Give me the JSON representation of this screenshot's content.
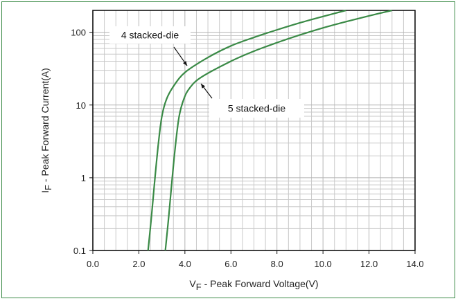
{
  "chart_data": {
    "type": "line",
    "xlabel": "V_F - Peak Forward Voltage(V)",
    "ylabel": "I_F - Peak Forward Current(A)",
    "xlim": [
      0,
      14
    ],
    "ylim": [
      0.1,
      200
    ],
    "y_scale": "log",
    "grid": true,
    "x_ticks": [
      "0.0",
      "2.0",
      "4.0",
      "6.0",
      "8.0",
      "10.0",
      "12.0",
      "14.0"
    ],
    "y_ticks": [
      "0.1",
      "1",
      "10",
      "100"
    ],
    "annotations": [
      {
        "text": "4 stacked-die",
        "points_to": [
          4.05,
          30
        ]
      },
      {
        "text": "5 stacked-die",
        "points_to": [
          4.7,
          24
        ]
      }
    ],
    "colors": {
      "series": "#3a8a46",
      "grid": "#c8c8c8",
      "frame": "#3a8a46"
    },
    "series": [
      {
        "x": [
          2.4,
          2.55,
          2.7,
          2.85,
          3.0,
          3.2,
          3.5,
          4.0,
          5.0,
          6.0,
          7.0,
          8.0,
          9.0,
          10.0,
          11.0
        ],
        "y": [
          0.1,
          0.3,
          1.0,
          3.0,
          7.0,
          12.0,
          18.0,
          28.0,
          45.0,
          65.0,
          85.0,
          108.0,
          135.0,
          165.0,
          200.0
        ]
      },
      {
        "x": [
          3.15,
          3.3,
          3.45,
          3.6,
          3.75,
          3.95,
          4.2,
          4.7,
          6.0,
          7.0,
          8.0,
          9.0,
          10.0,
          11.0,
          12.0,
          13.0
        ],
        "y": [
          0.1,
          0.3,
          1.0,
          3.0,
          7.0,
          12.0,
          17.0,
          24.0,
          40.0,
          55.0,
          72.0,
          92.0,
          115.0,
          140.0,
          168.0,
          200.0
        ]
      }
    ]
  }
}
